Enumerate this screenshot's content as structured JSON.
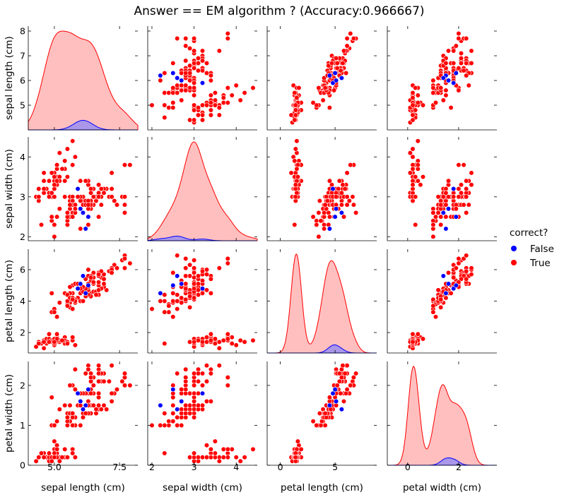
{
  "title": "Answer == EM algorithm ? (Accuracy:0.966667)",
  "variables": [
    "sepal length (cm)",
    "sepal width (cm)",
    "petal length (cm)",
    "petal width (cm)"
  ],
  "legend": {
    "title": "correct?",
    "entries": [
      {
        "label": "False",
        "color": "#0000ff"
      },
      {
        "label": "True",
        "color": "#ff0000"
      }
    ]
  },
  "colors": {
    "false": "#0000ff",
    "true": "#ff0000",
    "true_fill": "#ffbcbc",
    "false_fill": "#9b8ff0"
  },
  "chart_data": {
    "type": "scatter",
    "kind": "pairplot",
    "hue": "correct?",
    "axes": {
      "sepal length (cm)": {
        "lim": [
          4.0,
          8.2
        ],
        "ticks": [
          5,
          6,
          7,
          8
        ],
        "ticklabels": [
          "5",
          "6",
          "7",
          "8"
        ],
        "xlim": [
          4.0,
          8.2
        ],
        "xticks": [
          5.0,
          7.5
        ],
        "xticklabels": [
          "5.0",
          "7.5"
        ]
      },
      "sepal width (cm)": {
        "lim": [
          1.9,
          4.5
        ],
        "ticks": [
          2,
          3,
          4
        ],
        "ticklabels": [
          "2",
          "3",
          "4"
        ]
      },
      "petal length (cm)": {
        "lim": [
          0.7,
          7.3
        ],
        "ticks": [
          2,
          4,
          6
        ],
        "ticklabels": [
          "2",
          "4",
          "6"
        ],
        "xlim": [
          -1.2,
          8.8
        ],
        "xticks": [
          0,
          5
        ],
        "xticklabels": [
          "0",
          "5"
        ]
      },
      "petal width (cm)": {
        "lim": [
          0.0,
          2.6
        ],
        "ticks": [
          0,
          1,
          2
        ],
        "ticklabels": [
          "0",
          "1",
          "2"
        ],
        "xlim": [
          -0.8,
          3.5
        ],
        "xticks": [
          0,
          2
        ],
        "xticklabels": [
          "0",
          "2"
        ]
      }
    },
    "true_points": [
      [
        5.1,
        3.5,
        1.4,
        0.2
      ],
      [
        4.9,
        3.0,
        1.4,
        0.2
      ],
      [
        4.7,
        3.2,
        1.3,
        0.2
      ],
      [
        4.6,
        3.1,
        1.5,
        0.2
      ],
      [
        5.0,
        3.6,
        1.4,
        0.2
      ],
      [
        5.4,
        3.9,
        1.7,
        0.4
      ],
      [
        4.6,
        3.4,
        1.4,
        0.3
      ],
      [
        5.0,
        3.4,
        1.5,
        0.2
      ],
      [
        4.4,
        2.9,
        1.4,
        0.2
      ],
      [
        4.9,
        3.1,
        1.5,
        0.1
      ],
      [
        5.4,
        3.7,
        1.5,
        0.2
      ],
      [
        4.8,
        3.4,
        1.6,
        0.2
      ],
      [
        4.8,
        3.0,
        1.4,
        0.1
      ],
      [
        4.3,
        3.0,
        1.1,
        0.1
      ],
      [
        5.8,
        4.0,
        1.2,
        0.2
      ],
      [
        5.7,
        4.4,
        1.5,
        0.4
      ],
      [
        5.4,
        3.9,
        1.3,
        0.4
      ],
      [
        5.1,
        3.5,
        1.4,
        0.3
      ],
      [
        5.7,
        3.8,
        1.7,
        0.3
      ],
      [
        5.1,
        3.8,
        1.5,
        0.3
      ],
      [
        5.4,
        3.4,
        1.7,
        0.2
      ],
      [
        5.1,
        3.7,
        1.5,
        0.4
      ],
      [
        4.6,
        3.6,
        1.0,
        0.2
      ],
      [
        5.1,
        3.3,
        1.7,
        0.5
      ],
      [
        4.8,
        3.4,
        1.9,
        0.2
      ],
      [
        5.0,
        3.0,
        1.6,
        0.2
      ],
      [
        5.0,
        3.4,
        1.6,
        0.4
      ],
      [
        5.2,
        3.5,
        1.5,
        0.2
      ],
      [
        5.2,
        3.4,
        1.4,
        0.2
      ],
      [
        4.7,
        3.2,
        1.6,
        0.2
      ],
      [
        4.8,
        3.1,
        1.6,
        0.2
      ],
      [
        5.4,
        3.4,
        1.5,
        0.4
      ],
      [
        5.2,
        4.1,
        1.5,
        0.1
      ],
      [
        5.5,
        4.2,
        1.4,
        0.2
      ],
      [
        4.9,
        3.1,
        1.5,
        0.2
      ],
      [
        5.0,
        3.2,
        1.2,
        0.2
      ],
      [
        5.5,
        3.5,
        1.3,
        0.2
      ],
      [
        4.9,
        3.6,
        1.4,
        0.1
      ],
      [
        4.4,
        3.0,
        1.3,
        0.2
      ],
      [
        5.1,
        3.4,
        1.5,
        0.2
      ],
      [
        5.0,
        3.5,
        1.3,
        0.3
      ],
      [
        4.5,
        2.3,
        1.3,
        0.3
      ],
      [
        4.4,
        3.2,
        1.3,
        0.2
      ],
      [
        5.0,
        3.5,
        1.6,
        0.6
      ],
      [
        5.1,
        3.8,
        1.9,
        0.4
      ],
      [
        4.8,
        3.0,
        1.4,
        0.3
      ],
      [
        5.1,
        3.8,
        1.6,
        0.2
      ],
      [
        4.6,
        3.2,
        1.4,
        0.2
      ],
      [
        5.3,
        3.7,
        1.5,
        0.2
      ],
      [
        5.0,
        3.3,
        1.4,
        0.2
      ],
      [
        7.0,
        3.2,
        4.7,
        1.4
      ],
      [
        6.4,
        3.2,
        4.5,
        1.5
      ],
      [
        6.9,
        3.1,
        4.9,
        1.5
      ],
      [
        5.5,
        2.3,
        4.0,
        1.3
      ],
      [
        6.5,
        2.8,
        4.6,
        1.5
      ],
      [
        5.7,
        2.8,
        4.5,
        1.3
      ],
      [
        6.3,
        3.3,
        4.7,
        1.6
      ],
      [
        4.9,
        2.4,
        3.3,
        1.0
      ],
      [
        6.6,
        2.9,
        4.6,
        1.3
      ],
      [
        5.2,
        2.7,
        3.9,
        1.4
      ],
      [
        5.0,
        2.0,
        3.5,
        1.0
      ],
      [
        5.9,
        3.0,
        4.2,
        1.5
      ],
      [
        6.0,
        2.2,
        4.0,
        1.0
      ],
      [
        6.1,
        2.9,
        4.7,
        1.4
      ],
      [
        5.6,
        2.9,
        3.6,
        1.3
      ],
      [
        6.7,
        3.1,
        4.4,
        1.4
      ],
      [
        5.6,
        3.0,
        4.5,
        1.5
      ],
      [
        5.8,
        2.7,
        4.1,
        1.0
      ],
      [
        6.2,
        2.2,
        4.5,
        1.5
      ],
      [
        5.6,
        2.5,
        3.9,
        1.1
      ],
      [
        6.1,
        2.8,
        4.0,
        1.3
      ],
      [
        6.3,
        2.5,
        4.9,
        1.5
      ],
      [
        6.1,
        2.8,
        4.7,
        1.2
      ],
      [
        6.4,
        2.9,
        4.3,
        1.3
      ],
      [
        6.6,
        3.0,
        4.4,
        1.4
      ],
      [
        6.8,
        2.8,
        4.8,
        1.4
      ],
      [
        6.7,
        3.0,
        5.0,
        1.7
      ],
      [
        6.0,
        2.9,
        4.5,
        1.5
      ],
      [
        5.7,
        2.6,
        3.5,
        1.0
      ],
      [
        5.5,
        2.4,
        3.8,
        1.1
      ],
      [
        5.5,
        2.4,
        3.7,
        1.0
      ],
      [
        5.8,
        2.7,
        3.9,
        1.2
      ],
      [
        5.4,
        3.0,
        4.5,
        1.5
      ],
      [
        6.0,
        3.4,
        4.5,
        1.6
      ],
      [
        6.7,
        3.1,
        4.7,
        1.5
      ],
      [
        6.3,
        2.3,
        4.4,
        1.3
      ],
      [
        5.6,
        3.0,
        4.1,
        1.3
      ],
      [
        5.5,
        2.5,
        4.0,
        1.3
      ],
      [
        5.5,
        2.6,
        4.4,
        1.2
      ],
      [
        6.1,
        3.0,
        4.6,
        1.4
      ],
      [
        5.8,
        2.6,
        4.0,
        1.2
      ],
      [
        5.0,
        2.3,
        3.3,
        1.0
      ],
      [
        5.6,
        2.7,
        4.2,
        1.3
      ],
      [
        5.7,
        3.0,
        4.2,
        1.2
      ],
      [
        5.7,
        2.9,
        4.2,
        1.3
      ],
      [
        6.2,
        2.9,
        4.3,
        1.3
      ],
      [
        5.1,
        2.5,
        3.0,
        1.1
      ],
      [
        5.7,
        2.8,
        4.1,
        1.3
      ],
      [
        6.3,
        3.3,
        6.0,
        2.5
      ],
      [
        5.8,
        2.7,
        5.1,
        1.9
      ],
      [
        7.1,
        3.0,
        5.9,
        2.1
      ],
      [
        6.3,
        2.9,
        5.6,
        1.8
      ],
      [
        6.5,
        3.0,
        5.8,
        2.2
      ],
      [
        7.6,
        3.0,
        6.6,
        2.1
      ],
      [
        4.9,
        2.5,
        4.5,
        1.7
      ],
      [
        7.3,
        2.9,
        6.3,
        1.8
      ],
      [
        6.7,
        2.5,
        5.8,
        1.8
      ],
      [
        7.2,
        3.6,
        6.1,
        2.5
      ],
      [
        6.5,
        3.2,
        5.1,
        2.0
      ],
      [
        6.4,
        2.7,
        5.3,
        1.9
      ],
      [
        6.8,
        3.0,
        5.5,
        2.1
      ],
      [
        5.7,
        2.5,
        5.0,
        2.0
      ],
      [
        5.8,
        2.8,
        5.1,
        2.4
      ],
      [
        6.4,
        3.2,
        5.3,
        2.3
      ],
      [
        6.5,
        3.0,
        5.5,
        1.8
      ],
      [
        7.7,
        3.8,
        6.7,
        2.2
      ],
      [
        7.7,
        2.6,
        6.9,
        2.3
      ],
      [
        6.9,
        3.2,
        5.7,
        2.3
      ],
      [
        5.6,
        2.8,
        4.9,
        2.0
      ],
      [
        7.7,
        2.8,
        6.7,
        2.0
      ],
      [
        6.3,
        2.7,
        4.9,
        1.8
      ],
      [
        6.7,
        3.3,
        5.7,
        2.1
      ],
      [
        7.2,
        3.2,
        6.0,
        1.8
      ],
      [
        6.2,
        2.8,
        4.8,
        1.8
      ],
      [
        6.1,
        3.0,
        4.9,
        1.8
      ],
      [
        6.4,
        2.8,
        5.6,
        2.1
      ],
      [
        7.2,
        3.0,
        5.8,
        1.6
      ],
      [
        7.4,
        2.8,
        6.1,
        1.9
      ],
      [
        7.9,
        3.8,
        6.4,
        2.0
      ],
      [
        6.4,
        2.8,
        5.6,
        2.2
      ],
      [
        6.3,
        2.8,
        5.1,
        1.5
      ],
      [
        7.7,
        3.0,
        6.1,
        2.3
      ],
      [
        6.3,
        3.4,
        5.6,
        2.4
      ],
      [
        6.4,
        3.1,
        5.5,
        1.8
      ],
      [
        6.0,
        3.0,
        4.8,
        1.8
      ],
      [
        6.9,
        3.1,
        5.4,
        2.1
      ],
      [
        6.7,
        3.1,
        5.6,
        2.4
      ],
      [
        6.9,
        3.1,
        5.1,
        2.3
      ],
      [
        5.8,
        2.7,
        5.1,
        1.9
      ],
      [
        6.8,
        3.2,
        5.9,
        2.3
      ],
      [
        6.7,
        3.3,
        5.7,
        2.5
      ],
      [
        6.7,
        3.0,
        5.2,
        2.3
      ],
      [
        6.5,
        3.0,
        5.2,
        2.0
      ],
      [
        6.2,
        3.4,
        5.4,
        2.3
      ],
      [
        5.9,
        3.0,
        5.1,
        1.8
      ]
    ],
    "false_points": [
      [
        5.9,
        3.2,
        4.8,
        1.8
      ],
      [
        6.0,
        2.7,
        5.1,
        1.6
      ],
      [
        6.2,
        2.2,
        4.5,
        1.5
      ],
      [
        6.3,
        2.5,
        5.0,
        1.9
      ],
      [
        6.1,
        2.6,
        5.6,
        1.4
      ]
    ],
    "kde": [
      {
        "variable": "sepal length (cm)",
        "true_peak": 5.9,
        "false_peak": 6.1
      },
      {
        "variable": "sepal width (cm)",
        "true_peak": 3.0,
        "false_peak": 2.6
      },
      {
        "variable": "petal length (cm)",
        "true_peaks": [
          1.5,
          4.8
        ],
        "false_peak": 4.9
      },
      {
        "variable": "petal width (cm)",
        "true_peaks": [
          0.25,
          1.5
        ],
        "false_peak": 1.6
      }
    ]
  }
}
